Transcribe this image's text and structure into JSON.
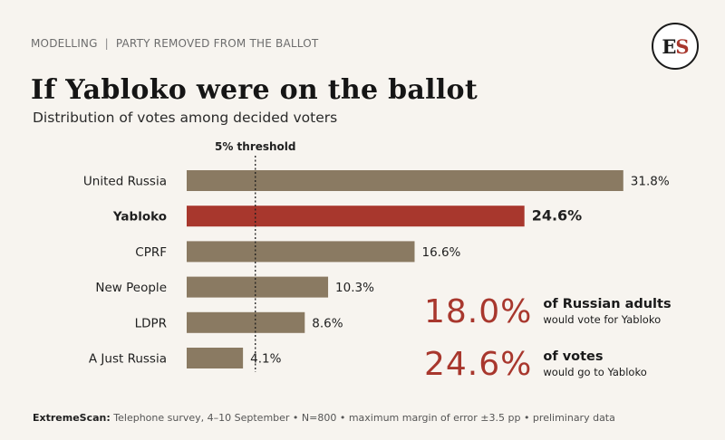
{
  "header": {
    "kicker_left": "MODELLING",
    "kicker_sep": "|",
    "kicker_right": "PARTY REMOVED FROM THE BALLOT",
    "logo_e": "E",
    "logo_s": "S",
    "title": "If Yabloko were on the ballot",
    "subtitle": "Distribution of votes among decided voters"
  },
  "chart_data": {
    "type": "bar",
    "orientation": "horizontal",
    "categories": [
      "United Russia",
      "Yabloko",
      "CPRF",
      "New People",
      "LDPR",
      "A Just Russia"
    ],
    "values": [
      31.8,
      24.6,
      16.6,
      10.3,
      8.6,
      4.1
    ],
    "value_labels": [
      "31.8%",
      "24.6%",
      "16.6%",
      "10.3%",
      "8.6%",
      "4.1%"
    ],
    "highlight": "Yabloko",
    "threshold": {
      "value": 5,
      "label": "5% threshold"
    },
    "colors": {
      "bar": "#8a7a62",
      "highlight": "#a8372d"
    },
    "xlim": [
      0,
      40
    ],
    "grid": false
  },
  "stats": [
    {
      "value": "18.0%",
      "line1": "of Russian adults",
      "line2": "would vote for Yabloko"
    },
    {
      "value": "24.6%",
      "line1": "of votes",
      "line2": "would go to Yabloko"
    }
  ],
  "footer": {
    "source": "ExtremeScan:",
    "text": " Telephone survey, 4–10 September • N=800 • maximum margin of error ±3.5 pp • preliminary data"
  }
}
